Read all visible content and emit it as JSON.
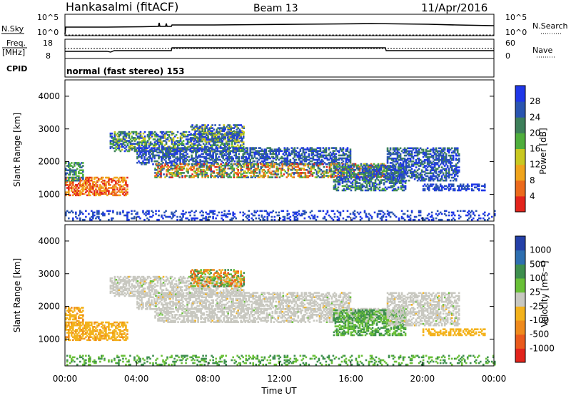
{
  "header": {
    "station": "Hankasalmi (fitACF)",
    "beam": "Beam 13",
    "date": "11/Apr/2016"
  },
  "strips": {
    "nsky_label": "N.Sky",
    "nsky_ticks": [
      "10^5",
      "10^0"
    ],
    "nsearch_label": "N.Search",
    "nsearch_ticks": [
      "10^5",
      "10^0"
    ],
    "freq_label_1": "Freq.",
    "freq_label_2": "[MHz]",
    "freq_ticks": [
      "18",
      "8"
    ],
    "nave_label": "Nave",
    "nave_ticks": [
      "60",
      "0"
    ],
    "cpid_label": "CPID",
    "cpid_text": "normal (fast stereo) 153"
  },
  "chart_data": [
    {
      "type": "heatmap",
      "name": "power",
      "xlabel": "Time UT",
      "ylabel": "Slant Range [km]",
      "xlim": [
        0,
        24
      ],
      "ylim": [
        180,
        4500
      ],
      "x_ticks": [
        "00:00",
        "04:00",
        "08:00",
        "12:00",
        "16:00",
        "20:00",
        "00:00"
      ],
      "y_ticks": [
        1000,
        2000,
        3000,
        4000
      ],
      "colorbar_label": "Power [dB]",
      "colorbar_ticks": [
        "4",
        "8",
        "12",
        "16",
        "20",
        "24",
        "28"
      ],
      "colors": [
        "#1f37e8",
        "#2a55b0",
        "#3d7f5a",
        "#4fae3c",
        "#c9c820",
        "#f0a41c",
        "#ec6a1c",
        "#e3241c"
      ]
    },
    {
      "type": "heatmap",
      "name": "velocity",
      "xlabel": "Time UT",
      "ylabel": "Slant Range [km]",
      "xlim": [
        0,
        24
      ],
      "ylim": [
        180,
        4500
      ],
      "x_ticks": [
        "00:00",
        "04:00",
        "08:00",
        "12:00",
        "16:00",
        "20:00",
        "00:00"
      ],
      "y_ticks": [
        1000,
        2000,
        3000,
        4000
      ],
      "colorbar_label": "Velocity [m s⁻¹]",
      "colorbar_ticks": [
        "1000",
        "500",
        "100",
        "25",
        "-25",
        "-100",
        "-500",
        "-1000"
      ],
      "colors": [
        "#2440a8",
        "#2e6fb0",
        "#3e8f4e",
        "#69c037",
        "#c8c8c0",
        "#f3b21c",
        "#ef8a1c",
        "#ea5a1c",
        "#e2241c"
      ],
      "ground_scatter_color": "#c8c8c0"
    }
  ]
}
